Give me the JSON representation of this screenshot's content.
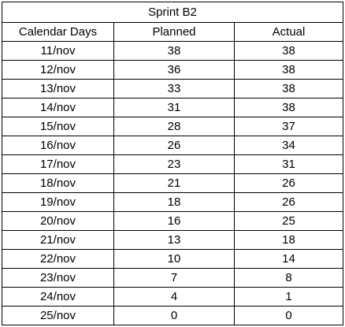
{
  "table": {
    "title": "Sprint B2",
    "headers": [
      "Calendar Days",
      "Planned",
      "Actual"
    ],
    "rows": [
      {
        "day": "11/nov",
        "planned": "38",
        "actual": "38"
      },
      {
        "day": "12/nov",
        "planned": "36",
        "actual": "38"
      },
      {
        "day": "13/nov",
        "planned": "33",
        "actual": "38"
      },
      {
        "day": "14/nov",
        "planned": "31",
        "actual": "38"
      },
      {
        "day": "15/nov",
        "planned": "28",
        "actual": "37"
      },
      {
        "day": "16/nov",
        "planned": "26",
        "actual": "34"
      },
      {
        "day": "17/nov",
        "planned": "23",
        "actual": "31"
      },
      {
        "day": "18/nov",
        "planned": "21",
        "actual": "26"
      },
      {
        "day": "19/nov",
        "planned": "18",
        "actual": "26"
      },
      {
        "day": "20/nov",
        "planned": "16",
        "actual": "25"
      },
      {
        "day": "21/nov",
        "planned": "13",
        "actual": "18"
      },
      {
        "day": "22/nov",
        "planned": "10",
        "actual": "14"
      },
      {
        "day": "23/nov",
        "planned": "7",
        "actual": "8"
      },
      {
        "day": "24/nov",
        "planned": "4",
        "actual": "1"
      },
      {
        "day": "25/nov",
        "planned": "0",
        "actual": "0"
      }
    ]
  },
  "colors": {
    "border": "#000000",
    "background": "#ffffff",
    "text": "#000000"
  }
}
